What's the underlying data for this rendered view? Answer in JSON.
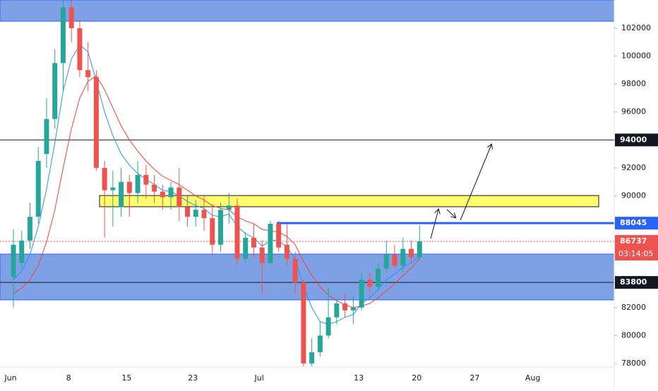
{
  "chart_data": {
    "type": "candlestick",
    "categories": [
      "Jun",
      null,
      null,
      null,
      null,
      null,
      null,
      "8",
      null,
      null,
      null,
      null,
      null,
      null,
      "15",
      null,
      null,
      null,
      null,
      null,
      null,
      null,
      "23",
      null,
      null,
      null,
      null,
      null,
      null,
      null,
      "Jul",
      null,
      null,
      null,
      null,
      null,
      null,
      null,
      null,
      null,
      null,
      null,
      "13",
      null,
      null,
      null,
      null,
      null,
      null,
      "20",
      null,
      null,
      null,
      null,
      null,
      null,
      "27",
      null,
      null,
      null,
      null,
      null,
      null,
      "Aug"
    ],
    "open": [
      84200,
      85200,
      86800,
      88500,
      93000,
      95500,
      99500,
      103500,
      102000,
      99000,
      98500,
      92000,
      90400,
      89200,
      91000,
      90200,
      91500,
      90800,
      90300,
      89900,
      90600,
      89200,
      88500,
      89000,
      88400,
      86500,
      89000,
      89300,
      85500,
      87000,
      86300,
      85200,
      88000,
      86500,
      85500,
      83800,
      78000,
      78800,
      80000,
      81300,
      82300,
      81800,
      82000,
      84000,
      83500,
      84800,
      85800,
      85000,
      86200,
      85600,
      null,
      null,
      null,
      null,
      null,
      null,
      null,
      null,
      null,
      null,
      null,
      null,
      null,
      null
    ],
    "high": [
      87600,
      87500,
      89500,
      93500,
      97000,
      100500,
      104000,
      104000,
      102600,
      101000,
      99000,
      92500,
      91800,
      92000,
      91500,
      92500,
      92200,
      91500,
      90800,
      91000,
      92000,
      90000,
      89700,
      90000,
      89400,
      89500,
      90200,
      89800,
      87400,
      88000,
      86800,
      88200,
      88200,
      88000,
      86000,
      84000,
      79800,
      81000,
      83400,
      82600,
      83000,
      82800,
      84500,
      84500,
      85200,
      86800,
      86500,
      87000,
      86800,
      87900,
      null,
      null,
      null,
      null,
      null,
      null,
      null,
      null,
      null,
      null,
      null,
      null,
      null,
      null
    ],
    "low": [
      82000,
      84800,
      86200,
      88000,
      92000,
      94800,
      97500,
      101000,
      98500,
      97500,
      91800,
      87000,
      87800,
      88500,
      88500,
      89500,
      89800,
      89500,
      89000,
      89000,
      88200,
      87800,
      87800,
      87500,
      85800,
      86000,
      88000,
      85000,
      85200,
      85600,
      83000,
      85000,
      86000,
      85000,
      83000,
      77800,
      77800,
      78500,
      79800,
      80800,
      81300,
      80800,
      81800,
      83000,
      83200,
      84500,
      84800,
      84600,
      85200,
      85400,
      null,
      null,
      null,
      null,
      null,
      null,
      null,
      null,
      null,
      null,
      null,
      null,
      null,
      null
    ],
    "close": [
      86500,
      86800,
      88500,
      92500,
      95500,
      99500,
      103500,
      102000,
      99000,
      98500,
      92000,
      90400,
      90600,
      91000,
      90200,
      91500,
      90800,
      90300,
      89900,
      90600,
      89200,
      88500,
      89000,
      88400,
      86500,
      89000,
      89300,
      85500,
      87000,
      86300,
      85200,
      88000,
      86300,
      85500,
      83800,
      78000,
      78800,
      80000,
      81300,
      82300,
      81800,
      82000,
      84000,
      83500,
      84800,
      85800,
      85000,
      86200,
      85600,
      86737,
      null,
      null,
      null,
      null,
      null,
      null,
      null,
      null,
      null,
      null,
      null,
      null,
      null,
      null
    ],
    "up_color": "#26a69a",
    "down_color": "#ef5350",
    "moving_averages": [
      {
        "color": "#2196f3",
        "values": [
          84000,
          84600,
          85800,
          87800,
          90500,
          93800,
          97500,
          99800,
          100800,
          100300,
          98200,
          96000,
          94300,
          93000,
          92200,
          91600,
          91200,
          90800,
          90400,
          90300,
          90000,
          89600,
          89300,
          89100,
          88600,
          88500,
          88700,
          87800,
          87300,
          87000,
          86400,
          86800,
          86800,
          86300,
          85500,
          83500,
          82000,
          81000,
          80800,
          81000,
          81300,
          81500,
          82300,
          82700,
          83300,
          84000,
          84400,
          84900,
          85200,
          85700,
          null,
          null,
          null,
          null,
          null,
          null,
          null,
          null,
          null,
          null,
          null,
          null,
          null,
          null
        ]
      },
      {
        "color": "#f44336",
        "values": [
          83000,
          83400,
          84000,
          85000,
          86700,
          89000,
          92000,
          94800,
          97000,
          98200,
          98600,
          97600,
          96300,
          95000,
          94000,
          93200,
          92500,
          91900,
          91400,
          91100,
          90800,
          90400,
          90000,
          89700,
          89300,
          89100,
          89000,
          88500,
          88200,
          88000,
          87600,
          87500,
          87400,
          87100,
          86500,
          85300,
          84300,
          83500,
          82900,
          82500,
          82200,
          82000,
          82100,
          82300,
          82700,
          83200,
          83700,
          84300,
          84800,
          85500,
          null,
          null,
          null,
          null,
          null,
          null,
          null,
          null,
          null,
          null,
          null,
          null,
          null,
          null
        ]
      }
    ],
    "ylim": [
      76230,
      104020
    ],
    "yticks": [
      78000,
      80000,
      82000,
      84000,
      86000,
      88000,
      90000,
      92000,
      94000,
      96000,
      98000,
      100000,
      102000
    ],
    "zones": [
      {
        "from": 102500,
        "to": 104020,
        "color": "#7ea1e6"
      },
      {
        "from": 82550,
        "to": 85830,
        "color": "#7ea1e6"
      },
      {
        "from": 89220,
        "to": 90020,
        "color": "#ffff6b"
      }
    ],
    "levels": [
      {
        "value": 94000,
        "color": "#131722"
      },
      {
        "value": 88045,
        "color": "#2962ff"
      },
      {
        "value": 86737,
        "color": "#ef5350"
      },
      {
        "value": 83800,
        "color": "#131722"
      }
    ],
    "countdown": "03:14:05"
  }
}
